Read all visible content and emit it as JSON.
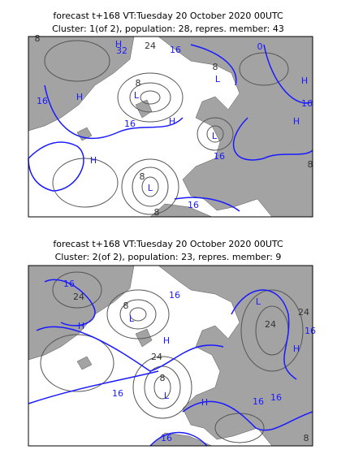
{
  "panels": [
    {
      "title_line1": "forecast t+168 VT:Tuesday 20 October 2020 00UTC",
      "title_line2": "Cluster: 1(of 2), population: 28, repres. member: 43",
      "labels": [
        {
          "text": "8",
          "color": "#333333"
        },
        {
          "text": "H",
          "color": "#1a1aff"
        },
        {
          "text": "32",
          "color": "#1a1aff"
        },
        {
          "text": "24",
          "color": "#333333"
        },
        {
          "text": "16",
          "color": "#1a1aff"
        },
        {
          "text": "8",
          "color": "#333333"
        },
        {
          "text": "L",
          "color": "#1a1aff"
        },
        {
          "text": "0",
          "color": "#1a1aff"
        },
        {
          "text": "H",
          "color": "#1a1aff"
        },
        {
          "text": "16",
          "color": "#1a1aff"
        },
        {
          "text": "H",
          "color": "#1a1aff"
        },
        {
          "text": "16",
          "color": "#1a1aff"
        },
        {
          "text": "8",
          "color": "#333333"
        },
        {
          "text": "L",
          "color": "#1a1aff"
        },
        {
          "text": "H",
          "color": "#1a1aff"
        },
        {
          "text": "L",
          "color": "#1a1aff"
        },
        {
          "text": "16",
          "color": "#1a1aff"
        },
        {
          "text": "H",
          "color": "#1a1aff"
        },
        {
          "text": "8",
          "color": "#333333"
        },
        {
          "text": "L",
          "color": "#1a1aff"
        },
        {
          "text": "16",
          "color": "#1a1aff"
        },
        {
          "text": "8",
          "color": "#333333"
        },
        {
          "text": "16",
          "color": "#1a1aff"
        },
        {
          "text": "8",
          "color": "#333333"
        },
        {
          "text": "H",
          "color": "#1a1aff"
        }
      ]
    },
    {
      "title_line1": "forecast t+168 VT:Tuesday 20 October 2020 00UTC",
      "title_line2": "Cluster: 2(of 2), population: 23, repres. member: 9",
      "labels": [
        {
          "text": "16",
          "color": "#1a1aff"
        },
        {
          "text": "24",
          "color": "#333333"
        },
        {
          "text": "H",
          "color": "#1a1aff"
        },
        {
          "text": "L",
          "color": "#1a1aff"
        },
        {
          "text": "8",
          "color": "#333333"
        },
        {
          "text": "16",
          "color": "#1a1aff"
        },
        {
          "text": "L",
          "color": "#1a1aff"
        },
        {
          "text": "24",
          "color": "#333333"
        },
        {
          "text": "24",
          "color": "#333333"
        },
        {
          "text": "16",
          "color": "#1a1aff"
        },
        {
          "text": "H",
          "color": "#1a1aff"
        },
        {
          "text": "24",
          "color": "#333333"
        },
        {
          "text": "H",
          "color": "#1a1aff"
        },
        {
          "text": "16",
          "color": "#1a1aff"
        },
        {
          "text": "8",
          "color": "#333333"
        },
        {
          "text": "L",
          "color": "#1a1aff"
        },
        {
          "text": "H",
          "color": "#1a1aff"
        },
        {
          "text": "16",
          "color": "#1a1aff"
        },
        {
          "text": "16",
          "color": "#1a1aff"
        },
        {
          "text": "8",
          "color": "#333333"
        },
        {
          "text": "16",
          "color": "#1a1aff"
        }
      ]
    }
  ]
}
